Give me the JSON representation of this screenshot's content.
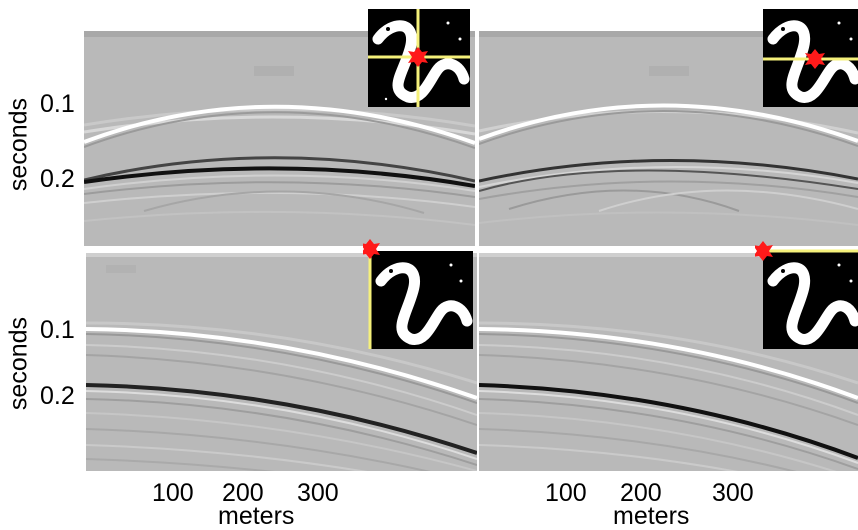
{
  "figure": {
    "ylabel": "seconds",
    "xlabel": "meters",
    "ytick_labels": [
      "0.1",
      "0.2"
    ],
    "xtick_labels": [
      "100",
      "200",
      "300"
    ]
  },
  "colors": {
    "background": "#b9b9b9",
    "inset_background": "#000000",
    "inset_snake": "#ffffff",
    "marker": "#ff1a1a",
    "guide_line": "#f5f07a"
  },
  "chart_data": [
    {
      "type": "heatmap",
      "panel": "top-left",
      "ylabel": "seconds",
      "yticks": [
        0.1,
        0.2
      ],
      "inset": "snake-with-crosshair"
    },
    {
      "type": "heatmap",
      "panel": "top-right",
      "yticks": [],
      "inset": "snake-with-horizontal-guide"
    },
    {
      "type": "heatmap",
      "panel": "bottom-left",
      "ylabel": "seconds",
      "xlabel": "meters",
      "yticks": [
        0.1,
        0.2
      ],
      "xticks": [
        100,
        200,
        300
      ],
      "inset": "snake-with-vertical-guide"
    },
    {
      "type": "heatmap",
      "panel": "bottom-right",
      "xlabel": "meters",
      "xticks": [
        100,
        200,
        300
      ],
      "inset": "snake-with-horizontal-guide"
    }
  ]
}
